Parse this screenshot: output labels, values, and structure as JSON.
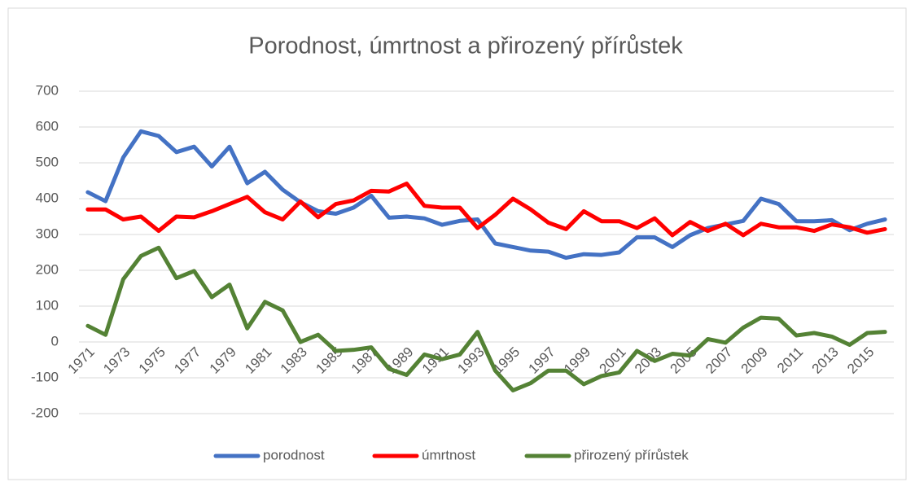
{
  "chart_data": {
    "type": "line",
    "title": "Porodnost, úmrtnost a přirozený přírůstek",
    "categories": [
      "1971",
      null,
      "1973",
      null,
      "1975",
      null,
      "1977",
      null,
      "1979",
      null,
      "1981",
      null,
      "1983",
      null,
      "1985",
      null,
      "1987",
      null,
      "1989",
      null,
      "1991",
      null,
      "1993",
      null,
      "1995",
      null,
      "1997",
      null,
      "1999",
      null,
      "2001",
      null,
      "2003",
      null,
      "2005",
      null,
      "2007",
      null,
      "2009",
      null,
      "2011",
      null,
      "2013",
      null,
      "2015",
      null
    ],
    "series": [
      {
        "name": "porodnost",
        "color": "#4472c4",
        "values": [
          418,
          393,
          515,
          588,
          575,
          530,
          545,
          490,
          545,
          443,
          475,
          425,
          390,
          365,
          358,
          375,
          408,
          347,
          350,
          345,
          327,
          338,
          342,
          275,
          265,
          255,
          252,
          235,
          245,
          243,
          250,
          292,
          292,
          265,
          298,
          318,
          328,
          338,
          400,
          385,
          337,
          337,
          340,
          312,
          330,
          342
        ]
      },
      {
        "name": "úmrtnost",
        "color": "#ff0000",
        "values": [
          370,
          370,
          342,
          350,
          310,
          350,
          348,
          365,
          385,
          405,
          362,
          342,
          392,
          348,
          385,
          395,
          422,
          420,
          442,
          380,
          375,
          375,
          318,
          355,
          400,
          370,
          333,
          315,
          365,
          337,
          337,
          318,
          345,
          298,
          335,
          310,
          330,
          298,
          330,
          320,
          320,
          310,
          328,
          320,
          305,
          315
        ]
      },
      {
        "name": "přirozený přírůstek",
        "color": "#548235",
        "values": [
          45,
          20,
          175,
          240,
          263,
          178,
          198,
          125,
          160,
          38,
          112,
          88,
          0,
          20,
          -25,
          -22,
          -15,
          -75,
          -92,
          -35,
          -48,
          -35,
          28,
          -80,
          -135,
          -115,
          -80,
          -80,
          -118,
          -95,
          -85,
          -25,
          -53,
          -33,
          -38,
          8,
          -2,
          40,
          68,
          65,
          18,
          25,
          15,
          -8,
          25,
          28
        ]
      }
    ],
    "ylim": [
      -200,
      700
    ],
    "yticks": [
      -200,
      -100,
      0,
      100,
      200,
      300,
      400,
      500,
      600,
      700
    ],
    "grid": true,
    "legend": "bottom"
  }
}
